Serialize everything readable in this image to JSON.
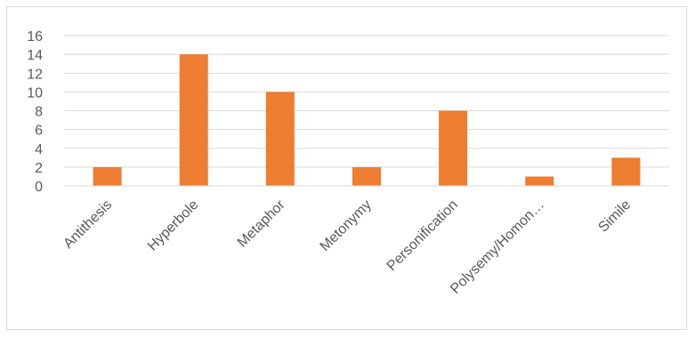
{
  "chart_data": {
    "type": "bar",
    "categories": [
      "Antithesis",
      "Hyperbole",
      "Metaphor",
      "Metonymy",
      "Personification",
      "Polysemy/Homon…",
      "Simile"
    ],
    "values": [
      2,
      14,
      10,
      2,
      8,
      1,
      3
    ],
    "ylim": [
      0,
      16
    ],
    "yticks": [
      0,
      2,
      4,
      6,
      8,
      10,
      12,
      14,
      16
    ],
    "grid": true,
    "legend": "none",
    "bar_color": "#ed7d31",
    "grid_color": "#d9d9d9",
    "text_color": "#595959"
  }
}
